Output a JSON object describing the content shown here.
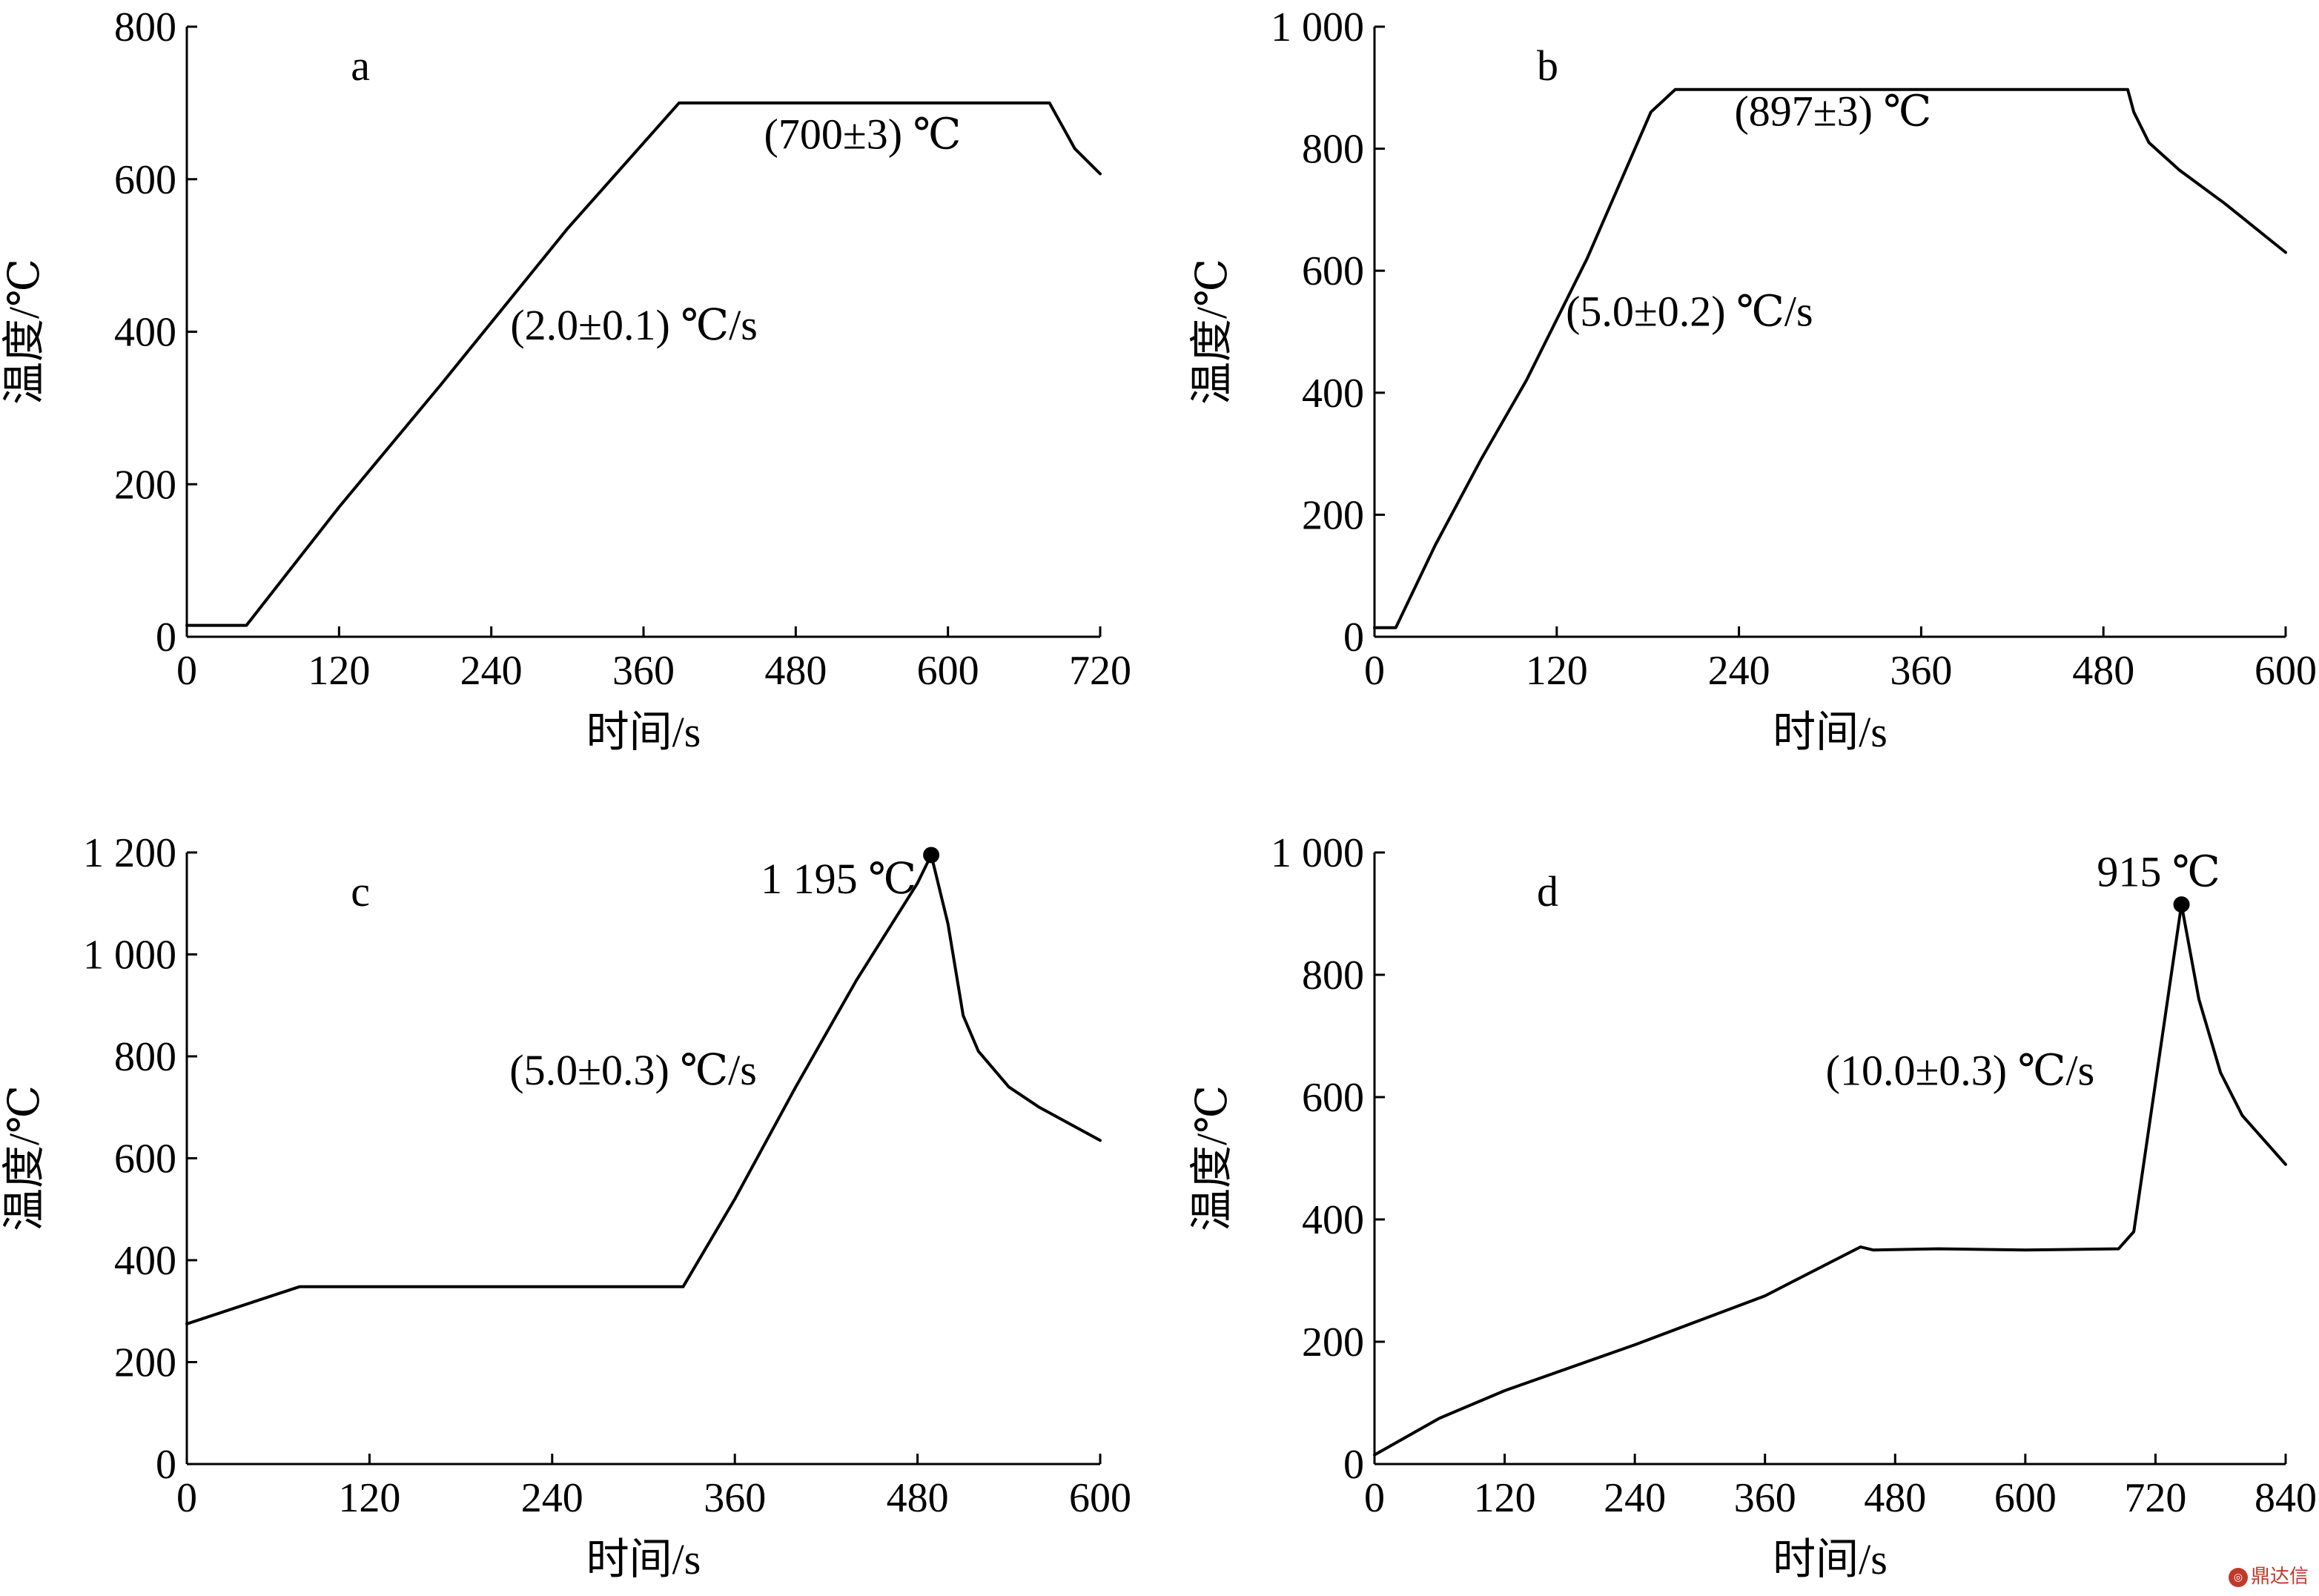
{
  "watermark": "鼎达信",
  "chart_data": [
    {
      "panel": "a",
      "type": "line",
      "xlabel": "时间/s",
      "ylabel": "温度/℃",
      "xlim": [
        0,
        720
      ],
      "ylim": [
        0,
        800
      ],
      "xticks": [
        0,
        120,
        240,
        360,
        480,
        600,
        720
      ],
      "yticks": [
        0,
        200,
        400,
        600,
        800
      ],
      "ytick_labels": [
        "0",
        "200",
        "400",
        "600",
        "800"
      ],
      "series": [
        {
          "x": [
            0,
            47,
            120,
            200,
            300,
            388,
            680,
            690,
            700,
            720
          ],
          "y": [
            15,
            15,
            170,
            330,
            535,
            700,
            700,
            670,
            640,
            607
          ]
        }
      ],
      "annotations": [
        {
          "text": "(700±3) ℃",
          "x": 455,
          "y": 640
        },
        {
          "text": "(2.0±0.1) ℃/s",
          "x": 255,
          "y": 390
        }
      ]
    },
    {
      "panel": "b",
      "type": "line",
      "xlabel": "时间/s",
      "ylabel": "温度/℃",
      "xlim": [
        0,
        600
      ],
      "ylim": [
        0,
        1000
      ],
      "xticks": [
        0,
        120,
        240,
        360,
        480,
        600
      ],
      "yticks": [
        0,
        200,
        400,
        600,
        800,
        1000
      ],
      "ytick_labels": [
        "0",
        "200",
        "400",
        "600",
        "800",
        "1 000"
      ],
      "series": [
        {
          "x": [
            0,
            14,
            40,
            70,
            100,
            140,
            182,
            198,
            496,
            500,
            510,
            530,
            560,
            600
          ],
          "y": [
            15,
            15,
            150,
            290,
            420,
            620,
            860,
            897,
            897,
            860,
            810,
            765,
            710,
            630
          ]
        }
      ],
      "annotations": [
        {
          "text": "(897±3) ℃",
          "x": 237,
          "y": 838
        },
        {
          "text": "(5.0±0.2) ℃/s",
          "x": 126,
          "y": 510
        }
      ]
    },
    {
      "panel": "c",
      "type": "line",
      "xlabel": "时间/s",
      "ylabel": "温度/℃",
      "xlim": [
        0,
        600
      ],
      "ylim": [
        0,
        1200
      ],
      "xticks": [
        0,
        120,
        240,
        360,
        480,
        600
      ],
      "yticks": [
        0,
        200,
        400,
        600,
        800,
        1000,
        1200
      ],
      "ytick_labels": [
        "0",
        "200",
        "400",
        "600",
        "800",
        "1 000",
        "1 200"
      ],
      "series": [
        {
          "x": [
            0,
            74,
            326,
            360,
            400,
            440,
            480,
            489,
            500,
            510,
            520,
            540,
            560,
            600
          ],
          "y": [
            275,
            348,
            348,
            520,
            740,
            950,
            1140,
            1195,
            1060,
            880,
            810,
            740,
            700,
            635
          ]
        }
      ],
      "peak": {
        "x": 489,
        "y": 1195,
        "label": "1 195 ℃"
      },
      "annotations": [
        {
          "text": "1 195 ℃",
          "x": 377,
          "y": 1120
        },
        {
          "text": "(5.0±0.3) ℃/s",
          "x": 212,
          "y": 745
        }
      ]
    },
    {
      "panel": "d",
      "type": "line",
      "xlabel": "时间/s",
      "ylabel": "温度/℃",
      "xlim": [
        0,
        840
      ],
      "ylim": [
        0,
        1000
      ],
      "xticks": [
        0,
        120,
        240,
        360,
        480,
        600,
        720,
        840
      ],
      "yticks": [
        0,
        200,
        400,
        600,
        800,
        1000
      ],
      "ytick_labels": [
        "0",
        "200",
        "400",
        "600",
        "800",
        "1 000"
      ],
      "series": [
        {
          "x": [
            0,
            60,
            120,
            240,
            360,
            448,
            460,
            520,
            600,
            686,
            700,
            744,
            760,
            780,
            800,
            840
          ],
          "y": [
            15,
            75,
            120,
            195,
            275,
            355,
            350,
            352,
            350,
            352,
            380,
            915,
            760,
            640,
            570,
            490
          ]
        }
      ],
      "peak": {
        "x": 744,
        "y": 915,
        "label": "915 ℃"
      },
      "annotations": [
        {
          "text": "915 ℃",
          "x": 666,
          "y": 945
        },
        {
          "text": "(10.0±0.3) ℃/s",
          "x": 416,
          "y": 620
        }
      ]
    }
  ]
}
